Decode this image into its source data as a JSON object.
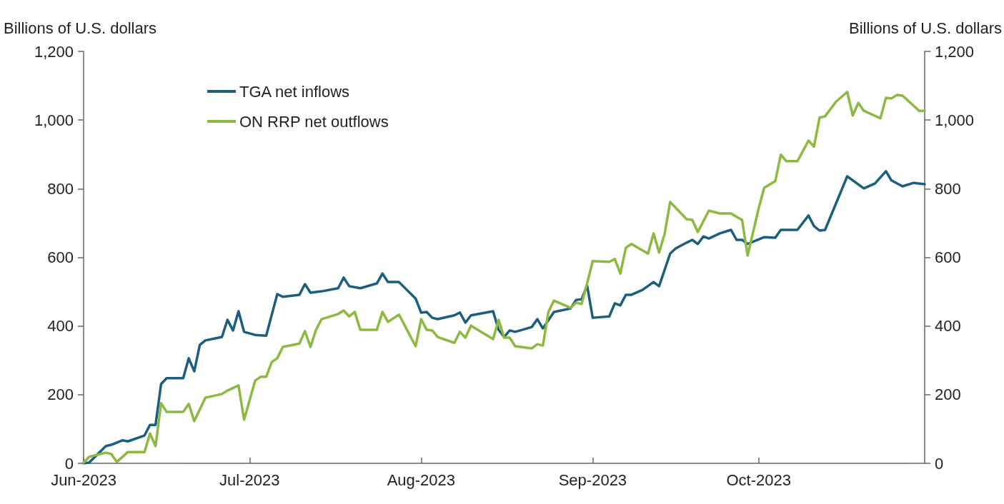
{
  "chart_data": {
    "type": "line",
    "ylabel": "Billions of U.S. dollars",
    "y2label": "Billions of U.S. dollars",
    "xlim": [
      "2023-06-01",
      "2023-10-31"
    ],
    "xticks": [
      {
        "value": "2023-06-01",
        "label": "Jun-2023"
      },
      {
        "value": "2023-07-01",
        "label": "Jul-2023"
      },
      {
        "value": "2023-08-01",
        "label": "Aug-2023"
      },
      {
        "value": "2023-09-01",
        "label": "Sep-2023"
      },
      {
        "value": "2023-10-01",
        "label": "Oct-2023"
      }
    ],
    "ylim": [
      0,
      1200
    ],
    "yticks": [
      0,
      200,
      400,
      600,
      800,
      {
        "value": 1000,
        "label": "1,000"
      },
      {
        "value": 1200,
        "label": "1,200"
      }
    ],
    "y2lim": [
      0,
      1200
    ],
    "y2ticks": [
      0,
      200,
      400,
      600,
      800,
      {
        "value": 1000,
        "label": "1,000"
      },
      {
        "value": 1200,
        "label": "1,200"
      }
    ],
    "grid": false,
    "legend": "top left",
    "marker": "none",
    "line_style": "solid",
    "series": [
      {
        "name": "TGA net inflows",
        "color": "#1b5e7d",
        "x": [
          "2023-06-01",
          "2023-06-02",
          "2023-06-05",
          "2023-06-06",
          "2023-06-08",
          "2023-06-09",
          "2023-06-12",
          "2023-06-13",
          "2023-06-14",
          "2023-06-15",
          "2023-06-16",
          "2023-06-19",
          "2023-06-20",
          "2023-06-21",
          "2023-06-22",
          "2023-06-23",
          "2023-06-26",
          "2023-06-27",
          "2023-06-28",
          "2023-06-29",
          "2023-06-30",
          "2023-07-02",
          "2023-07-04",
          "2023-07-06",
          "2023-07-07",
          "2023-07-10",
          "2023-07-11",
          "2023-07-12",
          "2023-07-14",
          "2023-07-17",
          "2023-07-18",
          "2023-07-19",
          "2023-07-21",
          "2023-07-24",
          "2023-07-25",
          "2023-07-26",
          "2023-07-28",
          "2023-07-31",
          "2023-08-01",
          "2023-08-02",
          "2023-08-03",
          "2023-08-04",
          "2023-08-07",
          "2023-08-08",
          "2023-08-09",
          "2023-08-10",
          "2023-08-14",
          "2023-08-15",
          "2023-08-16",
          "2023-08-17",
          "2023-08-18",
          "2023-08-21",
          "2023-08-22",
          "2023-08-23",
          "2023-08-25",
          "2023-08-28",
          "2023-08-29",
          "2023-08-30",
          "2023-08-31",
          "2023-09-01",
          "2023-09-04",
          "2023-09-05",
          "2023-09-06",
          "2023-09-07",
          "2023-09-08",
          "2023-09-10",
          "2023-09-12",
          "2023-09-13",
          "2023-09-15",
          "2023-09-16",
          "2023-09-18",
          "2023-09-19",
          "2023-09-20",
          "2023-09-21",
          "2023-09-22",
          "2023-09-24",
          "2023-09-26",
          "2023-09-27",
          "2023-09-28",
          "2023-09-29",
          "2023-10-02",
          "2023-10-04",
          "2023-10-05",
          "2023-10-08",
          "2023-10-10",
          "2023-10-11",
          "2023-10-12",
          "2023-10-13",
          "2023-10-17",
          "2023-10-20",
          "2023-10-22",
          "2023-10-24",
          "2023-10-25",
          "2023-10-27",
          "2023-10-29",
          "2023-10-31"
        ],
        "values": [
          0,
          2,
          50,
          54,
          67,
          64,
          81,
          112,
          112,
          231,
          248,
          248,
          306,
          268,
          345,
          358,
          368,
          418,
          387,
          443,
          383,
          374,
          372,
          493,
          485,
          491,
          522,
          497,
          501,
          510,
          541,
          516,
          510,
          524,
          553,
          528,
          528,
          480,
          439,
          441,
          424,
          420,
          431,
          439,
          410,
          431,
          443,
          389,
          368,
          387,
          383,
          397,
          420,
          393,
          441,
          451,
          476,
          478,
          518,
          424,
          428,
          466,
          460,
          491,
          491,
          505,
          528,
          516,
          611,
          626,
          643,
          651,
          639,
          661,
          655,
          670,
          680,
          651,
          651,
          639,
          659,
          657,
          680,
          680,
          722,
          691,
          678,
          680,
          836,
          801,
          815,
          851,
          824,
          807,
          817,
          813
        ]
      },
      {
        "name": "ON RRP net outflows",
        "color": "#8cb940",
        "x": [
          "2023-06-01",
          "2023-06-02",
          "2023-06-05",
          "2023-06-06",
          "2023-06-07",
          "2023-06-09",
          "2023-06-12",
          "2023-06-13",
          "2023-06-14",
          "2023-06-15",
          "2023-06-16",
          "2023-06-19",
          "2023-06-20",
          "2023-06-21",
          "2023-06-23",
          "2023-06-26",
          "2023-06-27",
          "2023-06-29",
          "2023-06-30",
          "2023-07-02",
          "2023-07-03",
          "2023-07-04",
          "2023-07-05",
          "2023-07-06",
          "2023-07-07",
          "2023-07-10",
          "2023-07-11",
          "2023-07-12",
          "2023-07-13",
          "2023-07-14",
          "2023-07-17",
          "2023-07-18",
          "2023-07-19",
          "2023-07-20",
          "2023-07-21",
          "2023-07-24",
          "2023-07-25",
          "2023-07-26",
          "2023-07-28",
          "2023-07-31",
          "2023-08-01",
          "2023-08-02",
          "2023-08-03",
          "2023-08-04",
          "2023-08-07",
          "2023-08-08",
          "2023-08-09",
          "2023-08-10",
          "2023-08-14",
          "2023-08-15",
          "2023-08-16",
          "2023-08-17",
          "2023-08-18",
          "2023-08-21",
          "2023-08-22",
          "2023-08-23",
          "2023-08-24",
          "2023-08-25",
          "2023-08-28",
          "2023-08-29",
          "2023-08-30",
          "2023-08-31",
          "2023-09-01",
          "2023-09-04",
          "2023-09-05",
          "2023-09-06",
          "2023-09-07",
          "2023-09-08",
          "2023-09-11",
          "2023-09-12",
          "2023-09-13",
          "2023-09-14",
          "2023-09-15",
          "2023-09-18",
          "2023-09-19",
          "2023-09-20",
          "2023-09-22",
          "2023-09-24",
          "2023-09-26",
          "2023-09-27",
          "2023-09-28",
          "2023-09-29",
          "2023-10-01",
          "2023-10-02",
          "2023-10-04",
          "2023-10-05",
          "2023-10-06",
          "2023-10-08",
          "2023-10-10",
          "2023-10-11",
          "2023-10-12",
          "2023-10-13",
          "2023-10-15",
          "2023-10-17",
          "2023-10-18",
          "2023-10-19",
          "2023-10-20",
          "2023-10-23",
          "2023-10-24",
          "2023-10-25",
          "2023-10-26",
          "2023-10-27",
          "2023-10-30",
          "2023-10-31"
        ],
        "values": [
          2,
          19,
          31,
          27,
          4,
          33,
          33,
          87,
          50,
          175,
          150,
          150,
          173,
          123,
          191,
          202,
          212,
          227,
          127,
          241,
          252,
          252,
          295,
          306,
          339,
          349,
          385,
          339,
          389,
          420,
          435,
          445,
          428,
          441,
          389,
          389,
          441,
          412,
          433,
          341,
          420,
          389,
          387,
          368,
          351,
          383,
          366,
          401,
          362,
          418,
          366,
          366,
          341,
          335,
          347,
          343,
          441,
          474,
          453,
          468,
          464,
          524,
          589,
          587,
          595,
          553,
          628,
          639,
          611,
          670,
          614,
          668,
          761,
          711,
          709,
          674,
          736,
          728,
          728,
          718,
          709,
          605,
          743,
          803,
          822,
          899,
          880,
          880,
          940,
          923,
          1007,
          1011,
          1054,
          1082,
          1013,
          1050,
          1027,
          1005,
          1065,
          1063,
          1073,
          1071,
          1027,
          1027
        ]
      }
    ]
  }
}
